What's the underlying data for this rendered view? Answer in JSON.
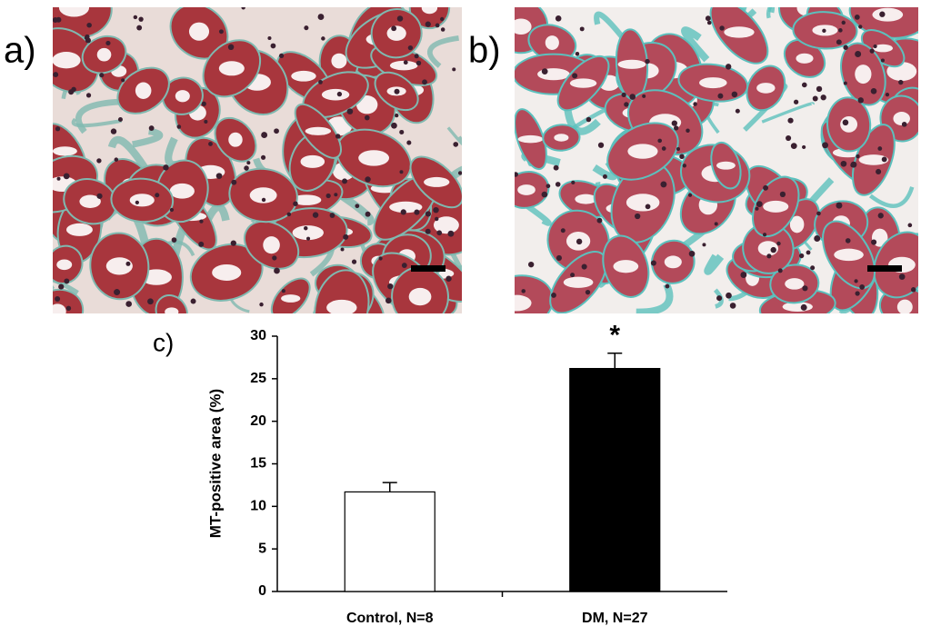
{
  "panel_labels": [
    "a)",
    "b)"
  ],
  "chart_data": {
    "type": "bar",
    "label": "c)",
    "ylabel": "MT-positive area (%)",
    "categories": [
      "Control, N=8",
      "DM, N=27"
    ],
    "values": [
      11.7,
      26.2
    ],
    "errors": [
      1.1,
      1.8
    ],
    "colors": [
      "#ffffff",
      "#000000"
    ],
    "annotations": [
      null,
      "*"
    ],
    "ylim": [
      0,
      30
    ],
    "yticks": [
      0,
      5,
      10,
      15,
      20,
      25,
      30
    ],
    "grid": false
  }
}
